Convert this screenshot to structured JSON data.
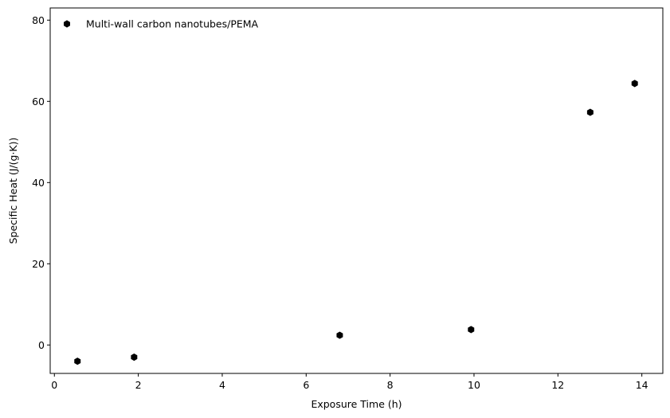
{
  "chart_data": {
    "type": "scatter",
    "title": "",
    "xlabel": "Exposure Time (h)",
    "ylabel": "Specific Heat (J/(g·K))",
    "xlim": [
      -0.1,
      14.5
    ],
    "ylim": [
      -7,
      83
    ],
    "xticks": [
      0,
      2,
      4,
      6,
      8,
      10,
      12,
      14
    ],
    "yticks": [
      0,
      20,
      40,
      60,
      80
    ],
    "xtick_labels": [
      "0",
      "2",
      "4",
      "6",
      "8",
      "10",
      "12",
      "14"
    ],
    "ytick_labels": [
      "0",
      "20",
      "40",
      "60",
      "80"
    ],
    "grid": false,
    "legend_position": "top-left",
    "marker": "hexagon",
    "color": "#000000",
    "series": [
      {
        "name": "Multi-wall carbon nanotubes/PEMA",
        "x": [
          0.55,
          1.9,
          6.8,
          9.93,
          12.77,
          13.83
        ],
        "y": [
          -4.0,
          -3.0,
          2.4,
          3.8,
          57.3,
          64.4
        ]
      }
    ]
  }
}
